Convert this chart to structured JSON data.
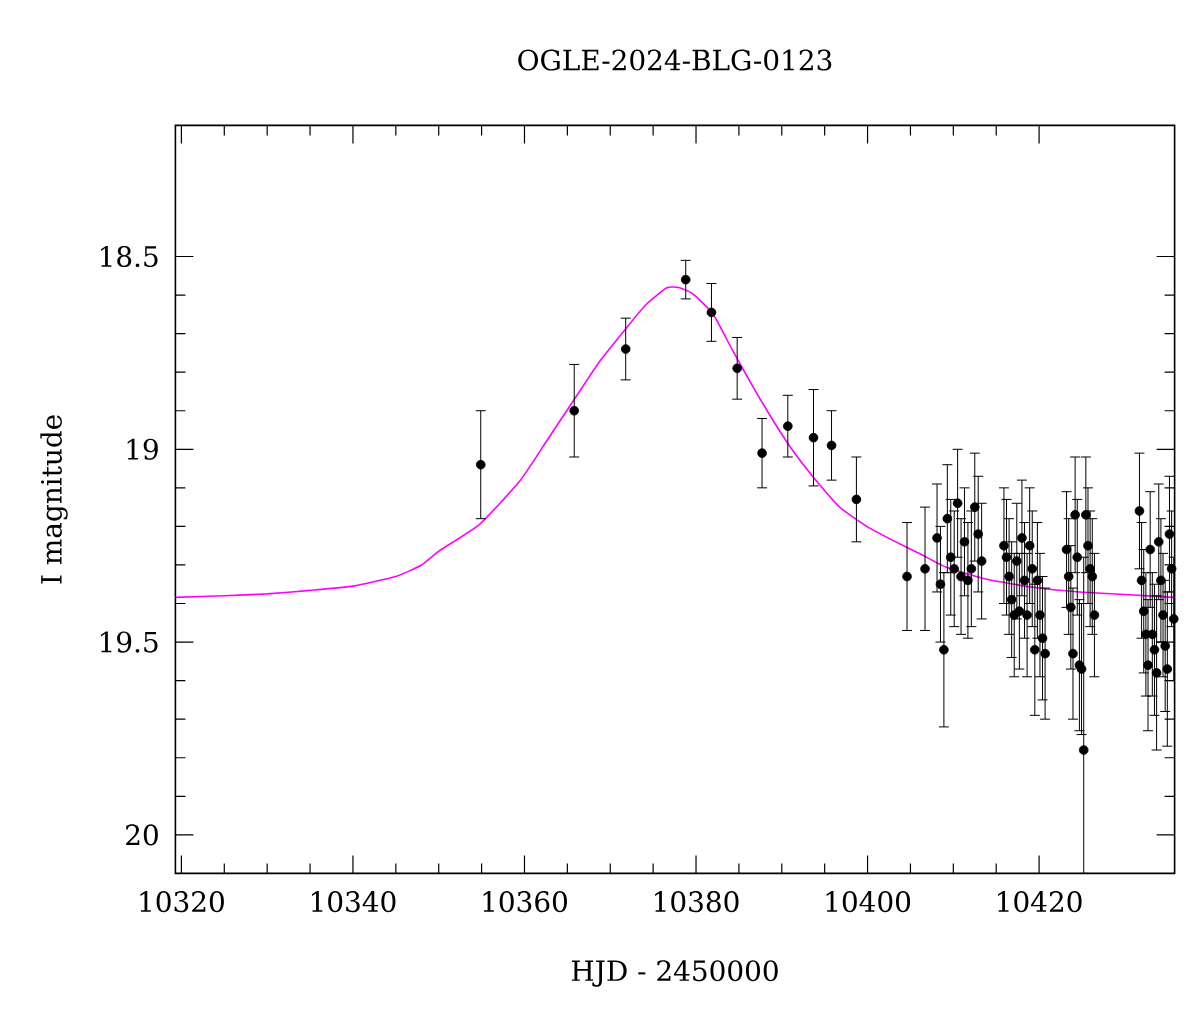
{
  "chart_data": {
    "type": "scatter",
    "title": "OGLE-2024-BLG-0123",
    "xlabel": "HJD - 2450000",
    "ylabel": "I magnitude",
    "xlim": [
      10319.3,
      10435.8
    ],
    "xticks": [
      10320,
      10340,
      10360,
      10380,
      10400,
      10420
    ],
    "ylim": [
      20.1,
      18.16
    ],
    "yticks": [
      18.5,
      19,
      19.5,
      20
    ],
    "grid": false,
    "series": [
      {
        "type": "line",
        "marker": "none",
        "color": "#ff00ff",
        "x": [
          10319.3,
          10325,
          10330,
          10335,
          10340,
          10345,
          10348,
          10350.1,
          10354.8,
          10359.5,
          10362.6,
          10365.7,
          10368.8,
          10371.9,
          10374.2,
          10376.6,
          10378.1,
          10379.7,
          10382,
          10384.3,
          10386.7,
          10389,
          10391.3,
          10393.7,
          10396.8,
          10399.9,
          10403,
          10406.1,
          10409.2,
          10413.9,
          10419.3,
          10424.7,
          10431,
          10435.8
        ],
        "values": [
          19.384,
          19.38,
          19.375,
          19.366,
          19.355,
          19.33,
          19.3,
          19.263,
          19.194,
          19.081,
          18.978,
          18.874,
          18.771,
          18.685,
          18.624,
          18.581,
          18.581,
          18.598,
          18.65,
          18.745,
          18.84,
          18.926,
          19.004,
          19.073,
          19.151,
          19.2,
          19.237,
          19.271,
          19.306,
          19.337,
          19.358,
          19.37,
          19.378,
          19.384
        ]
      },
      {
        "color": "#000000",
        "marker": "circle",
        "x": [
          10354.9,
          10365.8,
          10371.8,
          10378.8,
          10381.8,
          10384.8,
          10387.7,
          10390.7,
          10393.7,
          10395.8,
          10398.7,
          10404.6,
          10406.7,
          10408.1,
          10408.5,
          10408.9,
          10409.3,
          10409.7,
          10410.1,
          10410.5,
          10410.9,
          10411.3,
          10411.7,
          10412.1,
          10412.5,
          10412.9,
          10413.3,
          10415.9,
          10416.2,
          10416.5,
          10416.8,
          10417.1,
          10417.4,
          10417.7,
          10418,
          10418.3,
          10418.6,
          10418.9,
          10419.2,
          10419.5,
          10419.8,
          10420.1,
          10420.4,
          10420.7,
          10423.2,
          10423.45,
          10423.7,
          10423.95,
          10424.2,
          10424.45,
          10424.7,
          10424.95,
          10425.2,
          10425.45,
          10425.7,
          10425.95,
          10426.2,
          10426.45,
          10431.7,
          10431.95,
          10432.2,
          10432.45,
          10432.7,
          10432.95,
          10433.2,
          10433.45,
          10433.7,
          10433.95,
          10434.2,
          10434.45,
          10434.7,
          10434.95,
          10435.2,
          10435.45,
          10435.7
        ],
        "values": [
          19.04,
          18.9,
          18.74,
          18.56,
          18.645,
          18.79,
          19.01,
          18.94,
          18.97,
          18.99,
          19.13,
          19.33,
          19.31,
          19.23,
          19.35,
          19.52,
          19.18,
          19.28,
          19.31,
          19.14,
          19.33,
          19.24,
          19.34,
          19.31,
          19.15,
          19.22,
          19.29,
          19.25,
          19.28,
          19.33,
          19.39,
          19.43,
          19.29,
          19.42,
          19.23,
          19.34,
          19.43,
          19.25,
          19.31,
          19.52,
          19.34,
          19.43,
          19.49,
          19.53,
          19.26,
          19.33,
          19.41,
          19.53,
          19.17,
          19.28,
          19.56,
          19.57,
          19.78,
          19.17,
          19.25,
          19.31,
          19.33,
          19.43,
          19.16,
          19.34,
          19.42,
          19.48,
          19.56,
          19.26,
          19.48,
          19.52,
          19.58,
          19.24,
          19.34,
          19.43,
          19.51,
          19.57,
          19.22,
          19.31,
          19.44
        ],
        "errors": [
          0.14,
          0.12,
          0.08,
          0.05,
          0.075,
          0.08,
          0.09,
          0.08,
          0.125,
          0.09,
          0.11,
          0.14,
          0.16,
          0.14,
          0.15,
          0.2,
          0.14,
          0.15,
          0.15,
          0.14,
          0.15,
          0.14,
          0.15,
          0.15,
          0.14,
          0.15,
          0.15,
          0.15,
          0.15,
          0.15,
          0.15,
          0.16,
          0.15,
          0.15,
          0.15,
          0.15,
          0.16,
          0.15,
          0.15,
          0.17,
          0.15,
          0.16,
          0.16,
          0.17,
          0.15,
          0.15,
          0.16,
          0.17,
          0.15,
          0.15,
          0.17,
          0.17,
          [
            19.28,
            20.1
          ],
          0.15,
          0.15,
          0.15,
          0.15,
          0.16,
          0.15,
          0.15,
          0.16,
          0.16,
          0.17,
          0.15,
          0.16,
          0.17,
          0.2,
          0.15,
          0.16,
          0.16,
          0.17,
          0.2,
          0.15,
          0.15,
          0.16
        ]
      }
    ]
  }
}
